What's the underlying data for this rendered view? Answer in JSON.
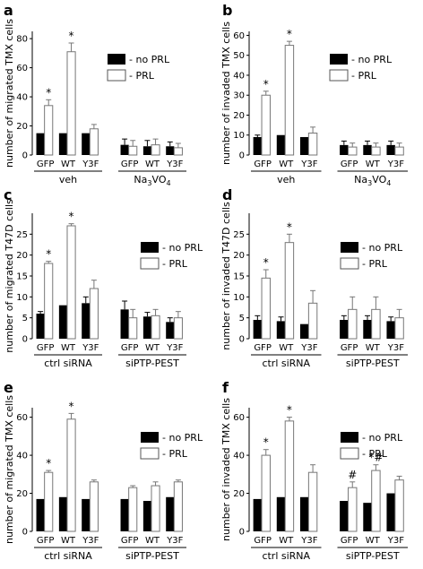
{
  "chart_data": [
    {
      "panel": "a",
      "type": "bar",
      "ylabel": "number of migrated TMX cells",
      "ylim": [
        0,
        85
      ],
      "yticks": [
        0,
        20,
        40,
        60,
        80
      ],
      "categories": [
        "GFP",
        "WT",
        "Y3F",
        "GFP",
        "WT",
        "Y3F"
      ],
      "groups": [
        "veh",
        "Na3VO4"
      ],
      "legend": [
        "- no PRL",
        "- PRL"
      ],
      "series": [
        {
          "name": "- no PRL",
          "values": [
            15,
            15,
            15,
            7,
            6,
            6
          ],
          "errors": [
            0,
            0,
            0,
            4,
            4,
            3
          ]
        },
        {
          "name": "- PRL",
          "values": [
            34,
            71,
            18,
            6,
            7,
            5
          ],
          "errors": [
            4,
            6,
            3,
            4,
            4,
            3
          ]
        }
      ],
      "annotations": [
        "*",
        "*",
        "",
        "",
        "",
        ""
      ]
    },
    {
      "panel": "b",
      "type": "bar",
      "ylabel": "number of invaded TMX cells",
      "ylim": [
        0,
        62
      ],
      "yticks": [
        0,
        10,
        20,
        30,
        40,
        50,
        60
      ],
      "categories": [
        "GFP",
        "WT",
        "Y3F",
        "GFP",
        "WT",
        "Y3F"
      ],
      "groups": [
        "veh",
        "Na3VO4"
      ],
      "legend": [
        "- no PRL",
        "- PRL"
      ],
      "series": [
        {
          "name": "- no PRL",
          "values": [
            9,
            10,
            9,
            5,
            5,
            5
          ],
          "errors": [
            1,
            0,
            0,
            2,
            2,
            2
          ]
        },
        {
          "name": "- PRL",
          "values": [
            30,
            55,
            11,
            4,
            4,
            4
          ],
          "errors": [
            2,
            2,
            3,
            2,
            2,
            2
          ]
        }
      ],
      "annotations": [
        "*",
        "*",
        "",
        "",
        "",
        ""
      ]
    },
    {
      "panel": "c",
      "type": "bar",
      "ylabel": "number of migrated T47D cells",
      "ylim": [
        0,
        30
      ],
      "yticks": [
        0,
        5,
        10,
        15,
        20,
        25
      ],
      "categories": [
        "GFP",
        "WT",
        "Y3F",
        "GFP",
        "WT",
        "Y3F"
      ],
      "groups": [
        "ctrl siRNA",
        "siPTP-PEST"
      ],
      "legend": [
        "- no PRL",
        "- PRL"
      ],
      "series": [
        {
          "name": "- no PRL",
          "values": [
            6,
            8,
            8.5,
            7,
            5.3,
            4
          ],
          "errors": [
            0.5,
            0,
            1.5,
            2,
            1,
            1
          ]
        },
        {
          "name": "- PRL",
          "values": [
            18,
            27,
            12,
            5,
            5.5,
            5
          ],
          "errors": [
            0.5,
            0.5,
            2,
            2,
            1.5,
            1.5
          ]
        }
      ],
      "annotations": [
        "*",
        "*",
        "",
        "",
        "",
        ""
      ]
    },
    {
      "panel": "d",
      "type": "bar",
      "ylabel": "number of invaded T47D cells",
      "ylim": [
        0,
        30
      ],
      "yticks": [
        0,
        5,
        10,
        15,
        20,
        25
      ],
      "categories": [
        "GFP",
        "WT",
        "Y3F",
        "GFP",
        "WT",
        "Y3F"
      ],
      "groups": [
        "ctrl siRNA",
        "siPTP-PEST"
      ],
      "legend": [
        "- no PRL",
        "- PRL"
      ],
      "series": [
        {
          "name": "- no PRL",
          "values": [
            4.5,
            4.2,
            3.5,
            4.5,
            4.5,
            4.2
          ],
          "errors": [
            1,
            1,
            0,
            1,
            1,
            1
          ]
        },
        {
          "name": "- PRL",
          "values": [
            14.5,
            23,
            8.5,
            7,
            7,
            5
          ],
          "errors": [
            2,
            2,
            3,
            3,
            3,
            2
          ]
        }
      ],
      "annotations": [
        "*",
        "*",
        "",
        "",
        "",
        ""
      ]
    },
    {
      "panel": "e",
      "type": "bar",
      "ylabel": "number of migrated TMX cells",
      "ylim": [
        0,
        65
      ],
      "yticks": [
        0,
        20,
        40,
        60
      ],
      "categories": [
        "GFP",
        "WT",
        "Y3F",
        "GFP",
        "WT",
        "Y3F"
      ],
      "groups": [
        "ctrl siRNA",
        "siPTP-PEST"
      ],
      "legend": [
        "- no PRL",
        "- PRL"
      ],
      "series": [
        {
          "name": "- no PRL",
          "values": [
            17,
            18,
            17,
            17,
            16,
            18
          ],
          "errors": [
            0,
            0,
            0,
            0,
            0,
            0
          ]
        },
        {
          "name": "- PRL",
          "values": [
            31,
            59,
            26,
            23,
            24,
            26
          ],
          "errors": [
            1,
            3,
            1,
            1,
            2,
            1
          ]
        }
      ],
      "annotations": [
        "*",
        "*",
        "",
        "",
        "",
        ""
      ]
    },
    {
      "panel": "f",
      "type": "bar",
      "ylabel": "number of invaded TMX cells",
      "ylim": [
        0,
        65
      ],
      "yticks": [
        0,
        20,
        40,
        60
      ],
      "categories": [
        "GFP",
        "WT",
        "Y3F",
        "GFP",
        "WT",
        "Y3F"
      ],
      "groups": [
        "ctrl siRNA",
        "siPTP-PEST"
      ],
      "legend": [
        "- no PRL",
        "- PRL"
      ],
      "series": [
        {
          "name": "- no PRL",
          "values": [
            17,
            18,
            18,
            16,
            15,
            20
          ],
          "errors": [
            0,
            0,
            0,
            0,
            0,
            0
          ]
        },
        {
          "name": "- PRL",
          "values": [
            40,
            58,
            31,
            23,
            32,
            27
          ],
          "errors": [
            3,
            2,
            4,
            3,
            3,
            2
          ]
        }
      ],
      "annotations": [
        "*",
        "*",
        "",
        "#",
        "*#",
        ""
      ]
    }
  ]
}
